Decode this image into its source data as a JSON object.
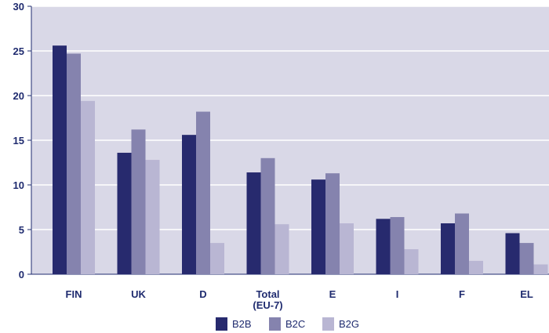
{
  "chart_data": {
    "type": "bar",
    "title": "",
    "xlabel": "",
    "ylabel": "",
    "ylim": [
      0,
      30
    ],
    "yticks": [
      0,
      5,
      10,
      15,
      20,
      25,
      30
    ],
    "grid": true,
    "legend_position": "bottom-center",
    "categories": [
      "FIN",
      "UK",
      "D",
      "Total\n(EU-7)",
      "E",
      "I",
      "F",
      "EL"
    ],
    "series": [
      {
        "name": "B2B",
        "color": "#272a6e",
        "values": [
          25.6,
          13.6,
          15.6,
          11.4,
          10.6,
          6.2,
          5.7,
          4.6
        ]
      },
      {
        "name": "B2C",
        "color": "#8583ae",
        "values": [
          24.7,
          16.2,
          18.2,
          13.0,
          11.3,
          6.4,
          6.8,
          3.5
        ]
      },
      {
        "name": "B2G",
        "color": "#b9b6d3",
        "values": [
          19.4,
          12.8,
          3.5,
          5.6,
          5.7,
          2.8,
          1.5,
          1.1
        ]
      }
    ],
    "colors": {
      "plot_background": "#d9d8e7",
      "grid": "#ffffff",
      "axis": "#1f2b6f",
      "text": "#1f2b6f"
    }
  }
}
